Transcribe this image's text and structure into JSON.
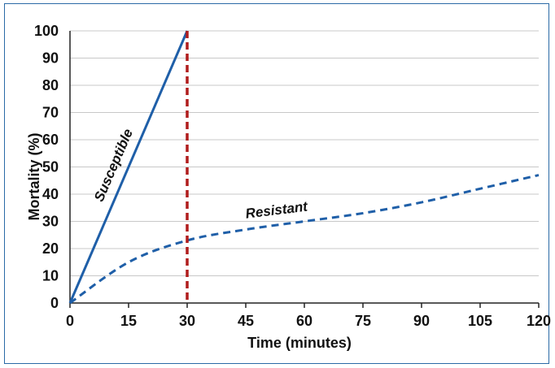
{
  "chart_data": {
    "type": "line",
    "title": "",
    "xlabel": "Time (minutes)",
    "ylabel": "Mortality (%)",
    "xlim": [
      0,
      120
    ],
    "ylim": [
      0,
      100
    ],
    "xticks": [
      0,
      15,
      30,
      45,
      60,
      75,
      90,
      105,
      120
    ],
    "yticks": [
      0,
      10,
      20,
      30,
      40,
      50,
      60,
      70,
      80,
      90,
      100
    ],
    "grid": "horizontal",
    "series": [
      {
        "name": "Susceptible",
        "color": "#1f5fa8",
        "style": "solid",
        "x": [
          0,
          30
        ],
        "y": [
          0,
          100
        ]
      },
      {
        "name": "Resistant",
        "color": "#1f5fa8",
        "style": "dashed",
        "x": [
          0,
          15,
          30,
          45,
          60,
          75,
          90,
          105,
          120
        ],
        "y": [
          0,
          15,
          23,
          27,
          30,
          33,
          37,
          42,
          47
        ]
      }
    ],
    "annotations": [
      {
        "type": "vertical-line",
        "x": 30,
        "color": "#b01c1c",
        "style": "dashed"
      }
    ]
  }
}
